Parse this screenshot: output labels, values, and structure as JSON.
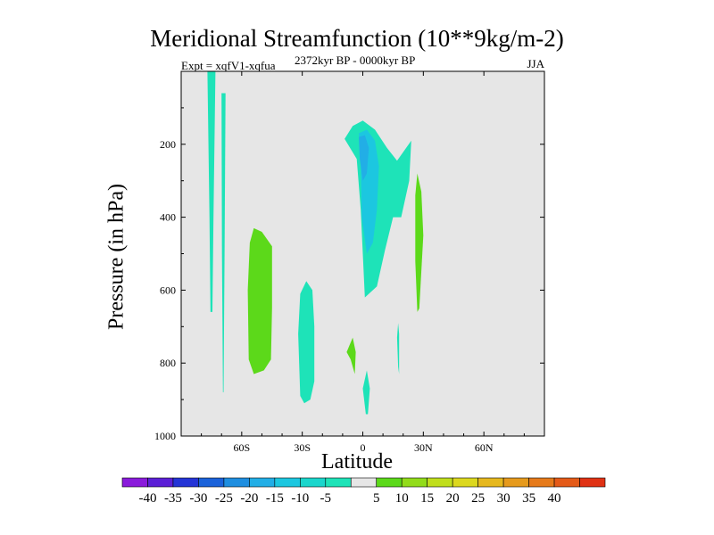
{
  "chart_data": {
    "type": "filled-contour",
    "title": "Meridional Streamfunction (10**9kg/m-2)",
    "left_string": "Expt = xqfV1-xqfua",
    "center_string": "2372kyr BP - 0000kyr BP",
    "right_string": "JJA",
    "xlabel": "Latitude",
    "ylabel": "Pressure (in hPa)",
    "xlim": [
      -90,
      90
    ],
    "ylim": [
      1000,
      0
    ],
    "x_ticks": [
      {
        "value": -60,
        "label": "60S"
      },
      {
        "value": -30,
        "label": "30S"
      },
      {
        "value": 0,
        "label": "0"
      },
      {
        "value": 30,
        "label": "30N"
      },
      {
        "value": 60,
        "label": "60N"
      }
    ],
    "y_ticks": [
      {
        "value": 200,
        "label": "200"
      },
      {
        "value": 400,
        "label": "400"
      },
      {
        "value": 600,
        "label": "600"
      },
      {
        "value": 800,
        "label": "800"
      },
      {
        "value": 1000,
        "label": "1000"
      }
    ],
    "colorbar": {
      "colors": [
        "#8a1adb",
        "#5b1fd6",
        "#2434d6",
        "#1a62da",
        "#1e8ee0",
        "#22aee6",
        "#1cc7e0",
        "#1ad6cc",
        "#1ee3b8",
        "#e6e6e6",
        "#5cd91a",
        "#92dc1a",
        "#c0de1c",
        "#dcd81e",
        "#e6b81e",
        "#e69a1c",
        "#e67a1a",
        "#e45a18",
        "#e03214"
      ],
      "labels": [
        "-40",
        "-35",
        "-30",
        "-25",
        "-20",
        "-15",
        "-10",
        "-5",
        "5",
        "10",
        "15",
        "20",
        "25",
        "30",
        "35",
        "40"
      ]
    },
    "regions": [
      {
        "name": "strip-75s",
        "level": -5,
        "color": "#1ee3b8",
        "points": [
          [
            -77,
            0
          ],
          [
            -73,
            0
          ],
          [
            -74,
            400
          ],
          [
            -74.5,
            660
          ],
          [
            -75.5,
            660
          ],
          [
            -76,
            400
          ]
        ]
      },
      {
        "name": "strip-70s",
        "level": -5,
        "color": "#1ee3b8",
        "points": [
          [
            -70,
            60
          ],
          [
            -68,
            60
          ],
          [
            -68.5,
            500
          ],
          [
            -69,
            880
          ],
          [
            -69.3,
            880
          ],
          [
            -69.8,
            500
          ]
        ]
      },
      {
        "name": "blob-55s",
        "level": 5,
        "color": "#5cd91a",
        "points": [
          [
            -54,
            430
          ],
          [
            -50,
            440
          ],
          [
            -45,
            480
          ],
          [
            -45,
            650
          ],
          [
            -45.5,
            790
          ],
          [
            -49,
            820
          ],
          [
            -54,
            830
          ],
          [
            -56.5,
            790
          ],
          [
            -57,
            600
          ],
          [
            -56,
            470
          ]
        ]
      },
      {
        "name": "blob-30s",
        "level": -5,
        "color": "#1ee3b8",
        "points": [
          [
            -28,
            575
          ],
          [
            -25,
            600
          ],
          [
            -24,
            700
          ],
          [
            -24,
            850
          ],
          [
            -26,
            900
          ],
          [
            -29,
            910
          ],
          [
            -31,
            890
          ],
          [
            -32,
            720
          ],
          [
            -31,
            610
          ]
        ]
      },
      {
        "name": "blob-10s-green",
        "level": 5,
        "color": "#5cd91a",
        "points": [
          [
            -5,
            730
          ],
          [
            -3.5,
            770
          ],
          [
            -4,
            830
          ],
          [
            -6,
            790
          ],
          [
            -8,
            770
          ]
        ]
      },
      {
        "name": "blob-0-low",
        "level": -5,
        "color": "#1ee3b8",
        "points": [
          [
            2,
            820
          ],
          [
            3.5,
            870
          ],
          [
            2.5,
            940
          ],
          [
            1.5,
            940
          ],
          [
            0,
            870
          ]
        ]
      },
      {
        "name": "blob-20n-thin",
        "level": -5,
        "color": "#1ee3b8",
        "points": [
          [
            17.5,
            690
          ],
          [
            18,
            720
          ],
          [
            18,
            830
          ],
          [
            17.5,
            810
          ],
          [
            17,
            730
          ]
        ]
      },
      {
        "name": "blob-30n-green",
        "level": 5,
        "color": "#5cd91a",
        "points": [
          [
            27,
            280
          ],
          [
            29,
            330
          ],
          [
            30,
            450
          ],
          [
            28,
            650
          ],
          [
            27,
            660
          ],
          [
            26,
            520
          ],
          [
            26,
            340
          ]
        ]
      },
      {
        "name": "plume-0-outer",
        "level": -5,
        "color": "#1ee3b8",
        "points": [
          [
            -9,
            185
          ],
          [
            -5,
            150
          ],
          [
            0,
            135
          ],
          [
            6,
            160
          ],
          [
            12,
            210
          ],
          [
            17,
            245
          ],
          [
            24,
            190
          ],
          [
            23,
            300
          ],
          [
            19,
            400
          ],
          [
            15,
            400
          ],
          [
            11,
            490
          ],
          [
            7,
            590
          ],
          [
            3,
            610
          ],
          [
            1,
            620
          ],
          [
            -1,
            380
          ],
          [
            -3,
            240
          ]
        ]
      },
      {
        "name": "plume-0-mid",
        "level": -10,
        "color": "#1cc7e0",
        "points": [
          [
            -2,
            170
          ],
          [
            2,
            160
          ],
          [
            6,
            190
          ],
          [
            8,
            260
          ],
          [
            7,
            380
          ],
          [
            5,
            470
          ],
          [
            2,
            500
          ],
          [
            -0.5,
            400
          ],
          [
            -1,
            250
          ]
        ]
      },
      {
        "name": "plume-0-core",
        "level": -15,
        "color": "#22aee6",
        "points": [
          [
            -2,
            180
          ],
          [
            1,
            175
          ],
          [
            3,
            210
          ],
          [
            2,
            280
          ],
          [
            0,
            300
          ],
          [
            -1.5,
            240
          ]
        ]
      }
    ]
  }
}
